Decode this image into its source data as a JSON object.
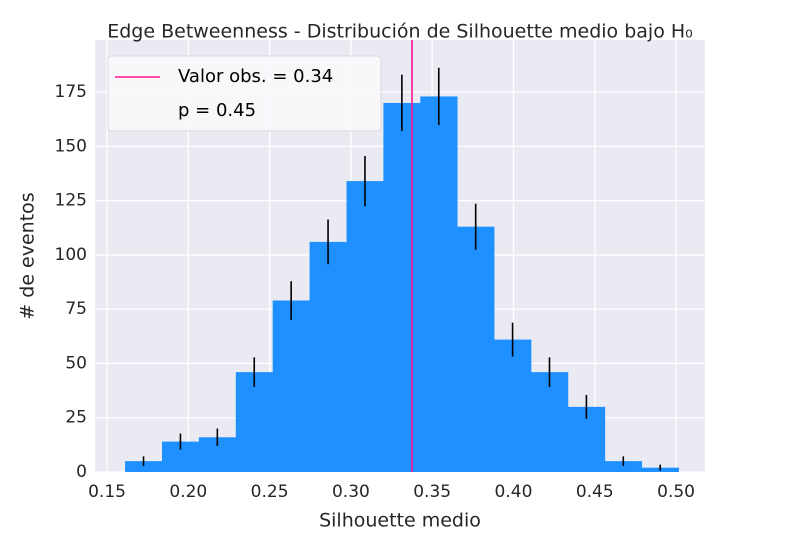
{
  "chart_data": {
    "type": "histogram",
    "title": "Edge Betweenness - Distribución de Silhouette medio bajo H₀",
    "x_label": "Silhouette medio",
    "y_label": "# de eventos",
    "bins": [
      0.1611,
      0.1838,
      0.2065,
      0.2292,
      0.2519,
      0.2746,
      0.2973,
      0.32,
      0.3427,
      0.3654,
      0.3881,
      0.4108,
      0.4335,
      0.4562,
      0.4789,
      0.5016
    ],
    "values": [
      5,
      14,
      16,
      46,
      79,
      106,
      134,
      170,
      173,
      113,
      61,
      46,
      30,
      5,
      2
    ],
    "errors": [
      2.2,
      3.7,
      4,
      6.8,
      8.9,
      10.3,
      11.6,
      13,
      13.2,
      10.6,
      7.8,
      6.8,
      5.5,
      2.2,
      1.4
    ],
    "color": "#1e90ff",
    "error_color": "#000000",
    "observed": {
      "value": 0.3376,
      "color": "#ff1493",
      "label": "Valor obs. = 0.34"
    },
    "p_label": "p = 0.45",
    "legend": "upper left",
    "grid": true,
    "xlim": [
      0.1426,
      0.5178
    ],
    "ylim": [
      0,
      199
    ],
    "xticks": [
      0.15,
      {
        "value": 0.2,
        "label": "0.20"
      },
      0.25,
      {
        "value": 0.3,
        "label": "0.30"
      },
      0.35,
      {
        "value": 0.4,
        "label": "0.40"
      },
      0.45,
      {
        "value": 0.5,
        "label": "0.50"
      }
    ],
    "yticks": [
      0,
      25,
      50,
      75,
      100,
      125,
      150,
      175
    ]
  }
}
